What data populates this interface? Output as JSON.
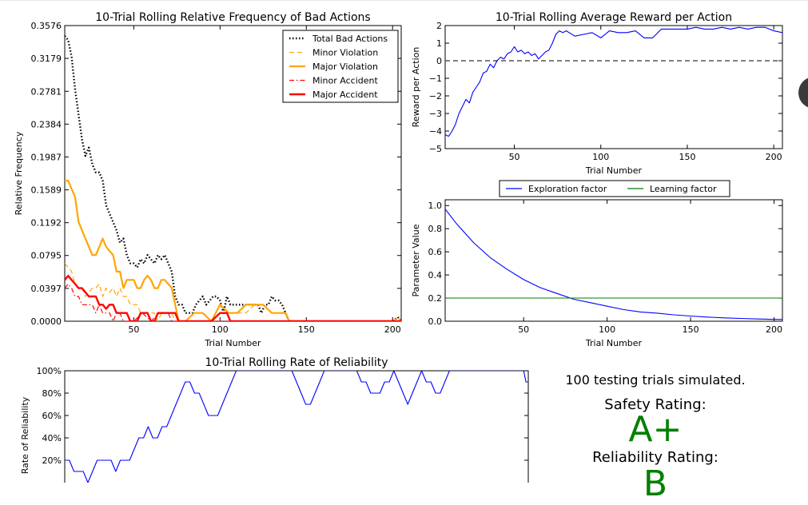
{
  "colors": {
    "blue": "#0000ff",
    "green": "#008000",
    "orange": "#ffa500",
    "red": "#ff0000",
    "black": "#000000",
    "dash_gray": "#555555",
    "rating_green": "#008000"
  },
  "summary": {
    "trials_text": "100 testing trials simulated.",
    "safety_label": "Safety Rating:",
    "safety_grade": "A+",
    "reliability_label": "Reliability Rating:",
    "reliability_grade": "B"
  },
  "chart_data": [
    {
      "id": "bad",
      "type": "line",
      "title": "10-Trial Rolling Relative Frequency of Bad Actions",
      "xlabel": "Trial Number",
      "ylabel": "Relative Frequency",
      "xlim": [
        10,
        205
      ],
      "ylim": [
        0,
        0.3576
      ],
      "xticks": [
        50,
        100,
        150,
        200
      ],
      "xtick_labels": [
        "50",
        "100",
        "150",
        "200"
      ],
      "yticks": [
        0.0,
        0.0397,
        0.0795,
        0.1192,
        0.1589,
        0.1987,
        0.2384,
        0.2781,
        0.3179,
        0.3576
      ],
      "ytick_labels": [
        "0.0000",
        "0.0397",
        "0.0795",
        "0.1192",
        "0.1589",
        "0.1987",
        "0.2384",
        "0.2781",
        "0.3179",
        "0.3576"
      ],
      "legend_position": "top-right",
      "series": [
        {
          "name": "Total Bad Actions",
          "color": "#000000",
          "style": "dotted",
          "width": 2.4,
          "x": [
            10,
            12,
            14,
            16,
            18,
            20,
            22,
            24,
            26,
            28,
            30,
            32,
            34,
            36,
            38,
            40,
            42,
            44,
            46,
            48,
            50,
            52,
            54,
            56,
            58,
            60,
            62,
            64,
            66,
            68,
            70,
            72,
            74,
            76,
            78,
            80,
            82,
            84,
            86,
            88,
            90,
            92,
            94,
            96,
            98,
            100,
            102,
            104,
            106,
            108,
            110,
            112,
            114,
            116,
            118,
            120,
            122,
            124,
            126,
            128,
            130,
            132,
            134,
            136,
            138,
            140,
            145,
            150,
            160,
            180,
            200,
            203,
            205
          ],
          "y": [
            0.345,
            0.34,
            0.32,
            0.28,
            0.25,
            0.22,
            0.2,
            0.21,
            0.19,
            0.18,
            0.18,
            0.17,
            0.14,
            0.13,
            0.12,
            0.11,
            0.095,
            0.1,
            0.08,
            0.07,
            0.07,
            0.065,
            0.075,
            0.07,
            0.08,
            0.075,
            0.07,
            0.08,
            0.075,
            0.08,
            0.07,
            0.06,
            0.03,
            0.02,
            0.02,
            0.01,
            0.01,
            0.01,
            0.02,
            0.025,
            0.03,
            0.02,
            0.025,
            0.03,
            0.03,
            0.025,
            0.01,
            0.03,
            0.02,
            0.02,
            0.02,
            0.02,
            0.02,
            0.02,
            0.02,
            0.02,
            0.02,
            0.01,
            0.02,
            0.02,
            0.03,
            0.025,
            0.025,
            0.02,
            0.01,
            0.0,
            0.0,
            0.0,
            0.0,
            0.0,
            0.0,
            0.005,
            0.0
          ]
        },
        {
          "name": "Minor Violation",
          "color": "#ffa500",
          "style": "dashed",
          "width": 1.2,
          "x": [
            10,
            12,
            14,
            16,
            18,
            20,
            22,
            24,
            26,
            28,
            30,
            32,
            34,
            36,
            38,
            40,
            42,
            44,
            46,
            48,
            50,
            52,
            54,
            56,
            58,
            60,
            62,
            64,
            66,
            68,
            70,
            72,
            74,
            76,
            78,
            80,
            85,
            90,
            95,
            100,
            105,
            110,
            115,
            120,
            125,
            130,
            135,
            138,
            140,
            150,
            200,
            203,
            205
          ],
          "y": [
            0.07,
            0.065,
            0.06,
            0.045,
            0.04,
            0.04,
            0.03,
            0.035,
            0.04,
            0.04,
            0.045,
            0.03,
            0.04,
            0.035,
            0.04,
            0.03,
            0.04,
            0.03,
            0.03,
            0.02,
            0.02,
            0.02,
            0.01,
            0.01,
            0.01,
            0.01,
            0.01,
            0.0,
            0.01,
            0.01,
            0.01,
            0.01,
            0.0,
            0.0,
            0.0,
            0.0,
            0.01,
            0.01,
            0.0,
            0.01,
            0.01,
            0.01,
            0.01,
            0.02,
            0.02,
            0.01,
            0.01,
            0.01,
            0.0,
            0.0,
            0.0,
            0.005,
            0.0
          ]
        },
        {
          "name": "Major Violation",
          "color": "#ffa500",
          "style": "solid",
          "width": 2.2,
          "x": [
            10,
            12,
            14,
            16,
            18,
            20,
            22,
            24,
            26,
            28,
            30,
            32,
            34,
            36,
            38,
            40,
            42,
            44,
            46,
            48,
            50,
            52,
            54,
            56,
            58,
            60,
            62,
            64,
            66,
            68,
            70,
            72,
            74,
            76,
            78,
            80,
            85,
            90,
            95,
            100,
            105,
            110,
            115,
            120,
            125,
            130,
            135,
            138,
            140,
            150,
            200,
            205
          ],
          "y": [
            0.17,
            0.17,
            0.16,
            0.15,
            0.12,
            0.11,
            0.1,
            0.09,
            0.08,
            0.08,
            0.09,
            0.1,
            0.09,
            0.085,
            0.08,
            0.06,
            0.06,
            0.04,
            0.05,
            0.05,
            0.05,
            0.04,
            0.04,
            0.05,
            0.055,
            0.05,
            0.04,
            0.04,
            0.05,
            0.05,
            0.045,
            0.04,
            0.02,
            0.0,
            0.0,
            0.0,
            0.01,
            0.01,
            0.0,
            0.02,
            0.01,
            0.01,
            0.02,
            0.02,
            0.02,
            0.01,
            0.01,
            0.01,
            0.0,
            0.0,
            0.0,
            0.0
          ]
        },
        {
          "name": "Minor Accident",
          "color": "#ff0000",
          "style": "dashdot",
          "width": 1.2,
          "x": [
            10,
            12,
            14,
            16,
            18,
            20,
            22,
            24,
            26,
            28,
            30,
            32,
            34,
            36,
            38,
            40,
            42,
            44,
            46,
            48,
            50,
            55,
            60,
            65,
            70,
            72,
            75,
            80,
            200,
            205
          ],
          "y": [
            0.04,
            0.045,
            0.04,
            0.03,
            0.03,
            0.02,
            0.02,
            0.02,
            0.02,
            0.01,
            0.02,
            0.01,
            0.01,
            0.01,
            0.0,
            0.01,
            0.01,
            0.0,
            0.0,
            0.0,
            0.0,
            0.01,
            0.0,
            0.01,
            0.01,
            0.0,
            0.0,
            0.0,
            0.0,
            0.0
          ]
        },
        {
          "name": "Major Accident",
          "color": "#ff0000",
          "style": "solid",
          "width": 2.4,
          "x": [
            10,
            12,
            14,
            16,
            18,
            20,
            22,
            24,
            26,
            28,
            30,
            32,
            34,
            36,
            38,
            40,
            42,
            44,
            46,
            48,
            50,
            52,
            54,
            56,
            58,
            60,
            62,
            64,
            66,
            68,
            70,
            72,
            74,
            76,
            78,
            80,
            85,
            90,
            95,
            100,
            102,
            104,
            106,
            200,
            205
          ],
          "y": [
            0.05,
            0.055,
            0.05,
            0.045,
            0.04,
            0.04,
            0.035,
            0.03,
            0.03,
            0.03,
            0.02,
            0.02,
            0.015,
            0.02,
            0.02,
            0.01,
            0.01,
            0.01,
            0.01,
            0.0,
            0.0,
            0.0,
            0.01,
            0.01,
            0.01,
            0.0,
            0.0,
            0.01,
            0.01,
            0.01,
            0.01,
            0.01,
            0.01,
            0.0,
            0.0,
            0.0,
            0.0,
            0.0,
            0.0,
            0.01,
            0.01,
            0.01,
            0.0,
            0.0,
            0.0
          ]
        }
      ]
    },
    {
      "id": "reward",
      "type": "line",
      "title": "10-Trial Rolling Average Reward per Action",
      "xlabel": "Trial Number",
      "ylabel": "Reward per Action",
      "xlim": [
        10,
        205
      ],
      "ylim": [
        -5,
        2
      ],
      "xticks": [
        50,
        100,
        150,
        200
      ],
      "xtick_labels": [
        "50",
        "100",
        "150",
        "200"
      ],
      "yticks": [
        -5,
        -4,
        -3,
        -2,
        -1,
        0,
        1,
        2
      ],
      "ytick_labels": [
        "−5",
        "−4",
        "−3",
        "−2",
        "−1",
        "0",
        "1",
        "2"
      ],
      "reference_line": 0,
      "series": [
        {
          "color": "#0000ff",
          "x": [
            10,
            12,
            14,
            16,
            18,
            20,
            22,
            24,
            26,
            28,
            30,
            32,
            34,
            36,
            38,
            40,
            42,
            44,
            46,
            48,
            50,
            52,
            54,
            56,
            58,
            60,
            62,
            64,
            66,
            68,
            70,
            72,
            74,
            76,
            78,
            80,
            85,
            90,
            95,
            100,
            105,
            110,
            115,
            120,
            125,
            130,
            135,
            140,
            145,
            150,
            155,
            160,
            165,
            170,
            175,
            180,
            185,
            190,
            195,
            200,
            205
          ],
          "y": [
            -4.2,
            -4.3,
            -4.0,
            -3.6,
            -3.0,
            -2.6,
            -2.2,
            -2.4,
            -1.8,
            -1.5,
            -1.2,
            -0.7,
            -0.6,
            -0.2,
            -0.4,
            0.0,
            0.2,
            0.1,
            0.4,
            0.5,
            0.8,
            0.5,
            0.6,
            0.4,
            0.5,
            0.3,
            0.4,
            0.1,
            0.3,
            0.5,
            0.6,
            1.0,
            1.5,
            1.7,
            1.6,
            1.7,
            1.4,
            1.5,
            1.6,
            1.3,
            1.7,
            1.6,
            1.6,
            1.7,
            1.3,
            1.3,
            1.8,
            1.8,
            1.8,
            1.8,
            1.9,
            1.8,
            1.8,
            1.9,
            1.8,
            1.9,
            1.8,
            1.9,
            1.9,
            1.7,
            1.6
          ]
        }
      ]
    },
    {
      "id": "params",
      "type": "line",
      "title": "",
      "xlabel": "Trial Number",
      "ylabel": "Parameter Value",
      "xlim": [
        3,
        205
      ],
      "ylim": [
        0,
        1.05
      ],
      "xticks": [
        50,
        100,
        150,
        200
      ],
      "xtick_labels": [
        "50",
        "100",
        "150",
        "200"
      ],
      "yticks": [
        0.0,
        0.2,
        0.4,
        0.6,
        0.8,
        1.0
      ],
      "ytick_labels": [
        "0.0",
        "0.2",
        "0.4",
        "0.6",
        "0.8",
        "1.0"
      ],
      "legend_position": "above",
      "series": [
        {
          "name": "Exploration factor",
          "color": "#0000ff",
          "x": [
            3,
            10,
            20,
            30,
            40,
            50,
            60,
            70,
            80,
            90,
            100,
            110,
            120,
            130,
            140,
            150,
            160,
            170,
            180,
            190,
            200,
            205
          ],
          "y": [
            0.97,
            0.84,
            0.68,
            0.55,
            0.45,
            0.36,
            0.29,
            0.24,
            0.19,
            0.16,
            0.13,
            0.1,
            0.08,
            0.07,
            0.055,
            0.045,
            0.036,
            0.029,
            0.024,
            0.019,
            0.016,
            0.015
          ]
        },
        {
          "name": "Learning factor",
          "color": "#008000",
          "x": [
            3,
            205
          ],
          "y": [
            0.2,
            0.2
          ]
        }
      ]
    },
    {
      "id": "reliability",
      "type": "line",
      "title": "10-Trial Rolling Rate of Reliability",
      "xlabel": "",
      "ylabel": "Rate of Reliability",
      "xlim": [
        10,
        210
      ],
      "ylim": [
        0,
        1.0
      ],
      "yticks": [
        0.2,
        0.4,
        0.6,
        0.8,
        1.0
      ],
      "ytick_labels": [
        "20%",
        "40%",
        "60%",
        "80%",
        "100%"
      ],
      "series": [
        {
          "color": "#0000ff",
          "x": [
            10,
            12,
            14,
            16,
            18,
            20,
            22,
            24,
            26,
            28,
            30,
            32,
            34,
            36,
            38,
            40,
            42,
            44,
            46,
            48,
            50,
            52,
            54,
            56,
            58,
            60,
            62,
            64,
            66,
            68,
            70,
            72,
            74,
            76,
            78,
            80,
            82,
            84,
            86,
            88,
            90,
            92,
            94,
            96,
            98,
            100,
            102,
            104,
            106,
            108,
            110,
            112,
            114,
            116,
            118,
            120,
            122,
            124,
            126,
            128,
            130,
            132,
            134,
            136,
            138,
            140,
            142,
            144,
            146,
            148,
            150,
            152,
            154,
            156,
            158,
            160,
            162,
            164,
            166,
            168,
            170,
            172,
            174,
            176,
            178,
            180,
            182,
            184,
            186,
            188,
            190,
            192,
            194,
            196,
            198,
            200,
            202,
            204,
            206,
            208,
            209,
            210
          ],
          "y": [
            0.2,
            0.2,
            0.1,
            0.1,
            0.1,
            0.0,
            0.1,
            0.2,
            0.2,
            0.2,
            0.2,
            0.1,
            0.2,
            0.2,
            0.2,
            0.3,
            0.4,
            0.4,
            0.5,
            0.4,
            0.4,
            0.5,
            0.5,
            0.6,
            0.7,
            0.8,
            0.9,
            0.9,
            0.8,
            0.8,
            0.7,
            0.6,
            0.6,
            0.6,
            0.7,
            0.8,
            0.9,
            1.0,
            1.0,
            1.0,
            1.0,
            1.0,
            1.0,
            1.0,
            1.0,
            1.0,
            1.0,
            1.0,
            1.0,
            1.0,
            0.9,
            0.8,
            0.7,
            0.7,
            0.8,
            0.9,
            1.0,
            1.0,
            1.0,
            1.0,
            1.0,
            1.0,
            1.0,
            1.0,
            0.9,
            0.9,
            0.8,
            0.8,
            0.8,
            0.9,
            0.9,
            1.0,
            0.9,
            0.8,
            0.7,
            0.8,
            0.9,
            1.0,
            0.9,
            0.9,
            0.8,
            0.8,
            0.9,
            1.0,
            1.0,
            1.0,
            1.0,
            1.0,
            1.0,
            1.0,
            1.0,
            1.0,
            1.0,
            1.0,
            1.0,
            1.0,
            1.0,
            1.0,
            1.0,
            1.0,
            0.9,
            0.9
          ]
        }
      ]
    }
  ]
}
